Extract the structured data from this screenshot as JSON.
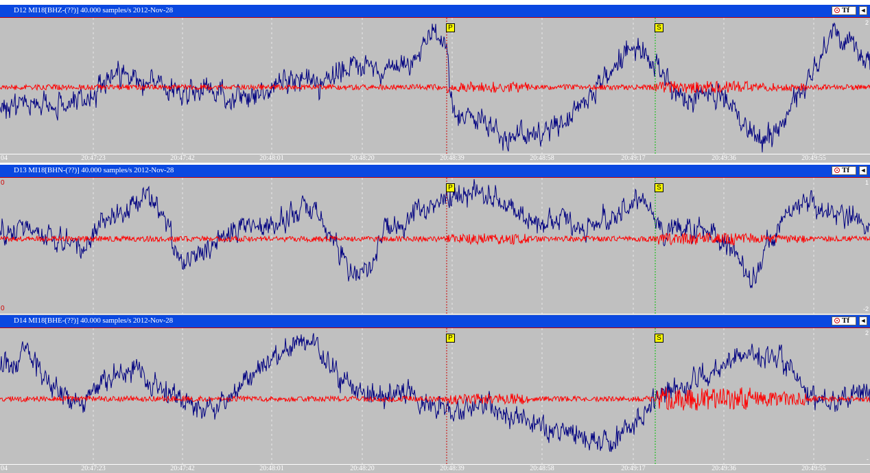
{
  "colors": {
    "titlebar": "#0a48e0",
    "plot_bg": "#c0c0c0",
    "trace_raw": "#000080",
    "trace_filtered": "#ff0000",
    "p_line": "#d00000",
    "s_line": "#00c000",
    "marker_bg": "#ffff00"
  },
  "panels": [
    {
      "title": "D12  MI18[BHZ-(??)] 40.000 samples/s 2012-Nov-28",
      "tf_label": "Tf",
      "scroll_label": "◄",
      "p_label": "P",
      "s_label": "S",
      "scale_top": "2",
      "scale_bottom": "",
      "left_top": "",
      "left_bottom": ""
    },
    {
      "title": "D13  MI18[BHN-(??)] 40.000 samples/s 2012-Nov-28",
      "tf_label": "Tf",
      "scroll_label": "◄",
      "p_label": "P",
      "s_label": "S",
      "scale_top": "1",
      "scale_bottom": "-2",
      "left_top": "0",
      "left_bottom": "0"
    },
    {
      "title": "D14  MI18[BHE-(??)] 40.000 samples/s 2012-Nov-28",
      "tf_label": "Tf",
      "scroll_label": "◄",
      "p_label": "P",
      "s_label": "S",
      "scale_top": "2",
      "scale_bottom": "-",
      "left_top": "",
      "left_bottom": ""
    }
  ],
  "time_axis": {
    "start_fragment": "04",
    "ticks": [
      "20:47:23",
      "20:47:42",
      "20:48:01",
      "20:48:20",
      "20:48:39",
      "20:48:58",
      "20:49:17",
      "20:49:36",
      "20:49:55"
    ]
  },
  "picks": {
    "p_time": "20:48:39",
    "s_time": "20:49:22"
  }
}
